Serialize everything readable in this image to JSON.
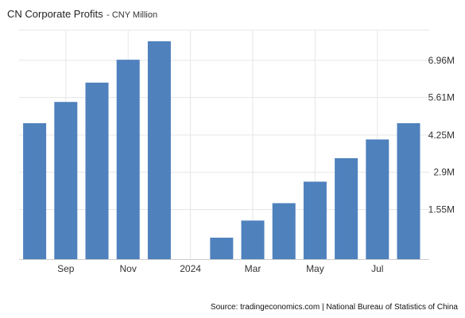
{
  "header": {
    "title": "CN Corporate Profits",
    "subtitle": "- CNY Million"
  },
  "footer": {
    "source": "Source: tradingeconomics.com | National Bureau of Statistics of China"
  },
  "colors": {
    "bar": "#4f81bd",
    "grid": "#e6e6e6",
    "axis": "#cccccc"
  },
  "chart_data": {
    "type": "bar",
    "title": "CN Corporate Profits",
    "subtitle": "- CNY Million",
    "xlabel": "",
    "ylabel": "",
    "categories": [
      "2023-08",
      "2023-09",
      "2023-10",
      "2023-11",
      "2023-12",
      "2024-01",
      "2024-02",
      "2024-03",
      "2024-04",
      "2024-05",
      "2024-06",
      "2024-07",
      "2024-08"
    ],
    "values": [
      4.68,
      5.45,
      6.15,
      6.98,
      7.65,
      null,
      0.53,
      1.15,
      1.78,
      2.56,
      3.41,
      4.09,
      4.68
    ],
    "x_tick_labels": [
      {
        "category": "2023-09",
        "label": "Sep"
      },
      {
        "category": "2023-11",
        "label": "Nov"
      },
      {
        "category": "2024-01",
        "label": "2024"
      },
      {
        "category": "2024-03",
        "label": "Mar"
      },
      {
        "category": "2024-05",
        "label": "May"
      },
      {
        "category": "2024-07",
        "label": "Jul"
      }
    ],
    "y_ticks": [
      1.55,
      2.9,
      4.25,
      5.61,
      6.96
    ],
    "y_tick_labels": [
      "1.55M",
      "2.9M",
      "4.25M",
      "5.61M",
      "6.96M"
    ],
    "ylim": [
      -0.25,
      8.05
    ],
    "y_axis_side": "right",
    "grid": true,
    "legend": "none"
  }
}
